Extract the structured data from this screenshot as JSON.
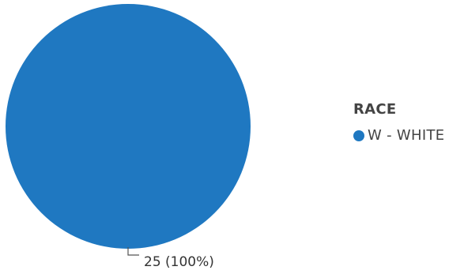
{
  "chart_data": {
    "type": "pie",
    "legend_title": "RACE",
    "legend_position": "right",
    "slices": [
      {
        "name": "W - WHITE",
        "value": 25,
        "percent": 100,
        "color": "#1f78c1",
        "data_label": "25 (100%)"
      }
    ]
  }
}
